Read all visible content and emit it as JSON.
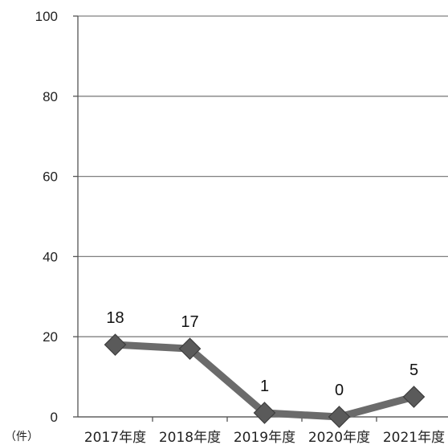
{
  "chart_data": {
    "type": "line",
    "title": "",
    "xlabel": "",
    "ylabel": "",
    "unit_label": "（件）",
    "categories": [
      "2017年度",
      "2018年度",
      "2019年度",
      "2020年度",
      "2021年度"
    ],
    "series": [
      {
        "values": [
          18,
          17,
          1,
          0,
          5
        ]
      }
    ],
    "ylim": [
      0,
      100
    ],
    "yticks": [
      "0",
      "20",
      "40",
      "60",
      "80",
      "100"
    ],
    "grid": true,
    "legend": "none",
    "colors": {
      "line": "#6b6b6b",
      "marker": "#5a5a5a",
      "grid": "#808080",
      "axis": "#555555"
    }
  }
}
